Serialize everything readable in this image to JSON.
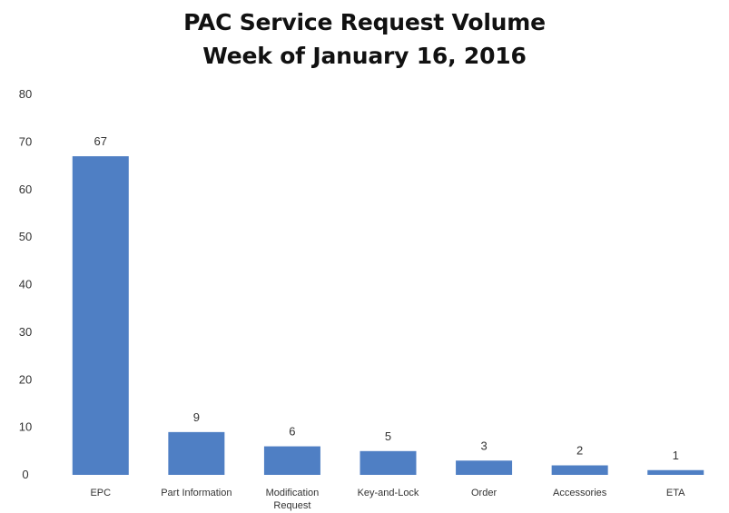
{
  "chart_data": {
    "type": "bar",
    "title": "PAC Service Request Volume",
    "subtitle": "Week of January 16, 2016",
    "categories": [
      "EPC",
      "Part Information",
      "Modification\nRequest",
      "Key-and-Lock",
      "Order",
      "Accessories",
      "ETA"
    ],
    "values": [
      67,
      9,
      6,
      5,
      3,
      2,
      1
    ],
    "data_labels": [
      "67",
      "9",
      "6",
      "5",
      "3",
      "2",
      "1"
    ],
    "ylim": [
      0,
      80
    ],
    "yticks": [
      0,
      10,
      20,
      30,
      40,
      50,
      60,
      70,
      80
    ],
    "xlabel": "",
    "ylabel": "",
    "grid": false,
    "legend": "none",
    "bar_color": "#4f7fc4"
  }
}
